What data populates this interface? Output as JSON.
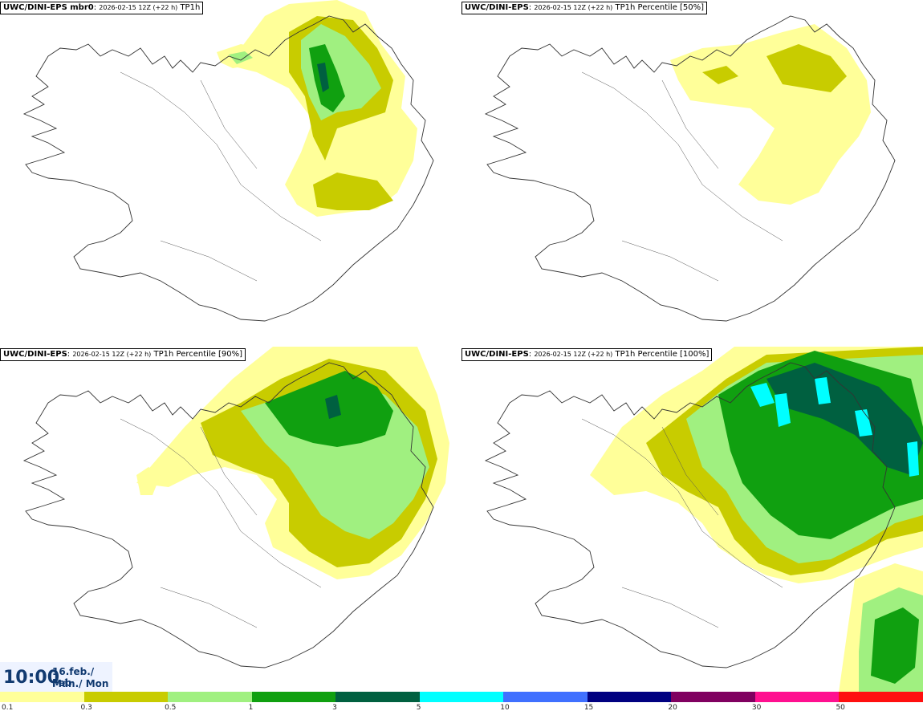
{
  "panels": [
    {
      "model": "UWC/DINI-EPS mbr0",
      "run": "2026-02-15 12Z (+22 h)",
      "field": "TP1h"
    },
    {
      "model": "UWC/DINI-EPS",
      "run": "2026-02-15 12Z (+22 h)",
      "field": "TP1h Percentile [50%]"
    },
    {
      "model": "UWC/DINI-EPS",
      "run": "2026-02-15 12Z (+22 h)",
      "field": "TP1h Percentile [90%]"
    },
    {
      "model": "UWC/DINI-EPS",
      "run": "2026-02-15 12Z (+22 h)",
      "field": "TP1h Percentile [100%]"
    }
  ],
  "valid_time": {
    "time": "10:00",
    "date_line1": "16.feb./ Feb",
    "date_line2": "Mán./ Mon"
  },
  "legend": {
    "ticks": [
      "0.1",
      "0.3",
      "0.5",
      "1",
      "3",
      "5",
      "10",
      "15",
      "20",
      "30",
      "50"
    ],
    "colors": [
      "#ffff99",
      "#c8cc00",
      "#a0f080",
      "#10a010",
      "#006040",
      "#00ffff",
      "#4070ff",
      "#000080",
      "#800060",
      "#ff1090",
      "#ff1010"
    ]
  },
  "map_colors": {
    "coast": "#333333",
    "road": "#555555"
  }
}
